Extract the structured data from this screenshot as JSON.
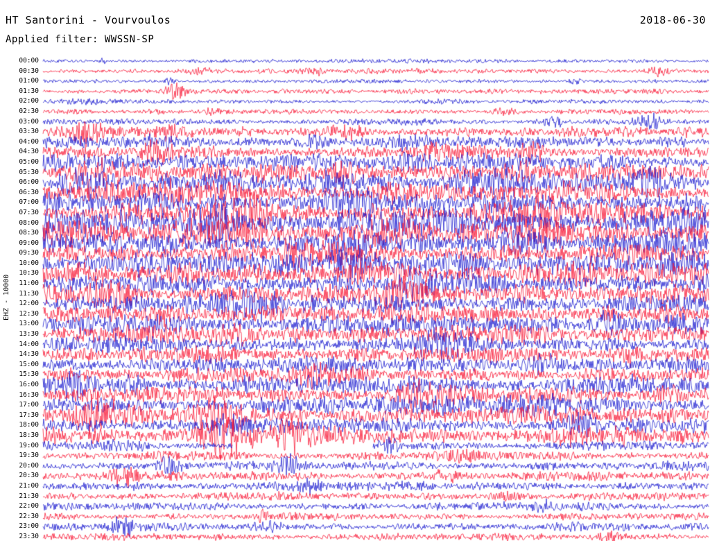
{
  "header": {
    "title": "HT Santorini - Vourvoulos",
    "date": "2018-06-30",
    "filter": "Applied filter: WWSSN-SP"
  },
  "axis": {
    "ylabel": "EHZ - 10000"
  },
  "chart_data": {
    "type": "line",
    "subtype": "helicorder-seismogram",
    "station": "HT Santorini - Vourvoulos",
    "channel": "EHZ",
    "scale": 10000,
    "date": "2018-06-30",
    "filter": "WWSSN-SP",
    "row_duration_minutes": 30,
    "colors": {
      "b": "#1414cd",
      "r": "#f81230"
    },
    "label_color": "#000000",
    "rows": [
      {
        "t": "00:00",
        "c": "b",
        "a": 4,
        "b": [
          [
            0.09,
            2.2,
            0.003
          ]
        ]
      },
      {
        "t": "00:30",
        "c": "r",
        "a": 5,
        "b": [
          [
            0.24,
            1.8,
            0.02
          ],
          [
            0.41,
            1.2,
            0.01
          ],
          [
            0.92,
            2.0,
            0.012
          ]
        ]
      },
      {
        "t": "01:00",
        "c": "b",
        "a": 4,
        "b": [
          [
            0.19,
            2.6,
            0.006
          ],
          [
            0.8,
            2.0,
            0.008
          ]
        ]
      },
      {
        "t": "01:30",
        "c": "r",
        "a": 5,
        "b": [
          [
            0.2,
            2.6,
            0.01
          ],
          [
            0.55,
            1.2,
            0.02
          ]
        ]
      },
      {
        "t": "02:00",
        "c": "b",
        "a": 4,
        "b": [
          [
            0.05,
            1.5,
            0.02
          ],
          [
            0.6,
            1.2,
            0.02
          ]
        ]
      },
      {
        "t": "02:30",
        "c": "r",
        "a": 5,
        "b": [
          [
            0.17,
            1.6,
            0.012
          ],
          [
            0.25,
            1.6,
            0.012
          ],
          [
            0.69,
            1.6,
            0.015
          ]
        ]
      },
      {
        "t": "03:00",
        "c": "b",
        "a": 6,
        "b": [
          [
            0.77,
            1.8,
            0.012
          ],
          [
            0.91,
            2.6,
            0.015
          ]
        ]
      },
      {
        "t": "03:30",
        "c": "r",
        "a": 10,
        "b": [
          [
            0.07,
            1.8,
            0.02
          ],
          [
            0.19,
            1.5,
            0.015
          ],
          [
            0.45,
            1.2,
            0.02
          ]
        ]
      },
      {
        "t": "04:00",
        "c": "b",
        "a": 11,
        "b": [
          [
            0.17,
            1.6,
            0.015
          ],
          [
            0.4,
            1.4,
            0.02
          ],
          [
            0.56,
            1.2,
            0.02
          ]
        ]
      },
      {
        "t": "04:30",
        "c": "r",
        "a": 12,
        "b": [
          [
            0.17,
            1.5,
            0.018
          ],
          [
            0.6,
            1.3,
            0.02
          ],
          [
            0.74,
            1.2,
            0.015
          ]
        ]
      },
      {
        "t": "05:00",
        "c": "b",
        "a": 16,
        "b": [
          [
            0.37,
            1.2,
            0.025
          ],
          [
            0.55,
            1.1,
            0.02
          ]
        ]
      },
      {
        "t": "05:30",
        "c": "r",
        "a": 18,
        "b": [
          [
            0.07,
            1.1,
            0.02
          ],
          [
            0.46,
            1.1,
            0.02
          ],
          [
            0.72,
            1.2,
            0.03
          ]
        ]
      },
      {
        "t": "06:00",
        "c": "b",
        "a": 20,
        "b": [
          [
            0.05,
            1.0,
            0.02
          ],
          [
            0.43,
            1.0,
            0.025
          ],
          [
            0.66,
            1.1,
            0.03
          ],
          [
            0.9,
            1.0,
            0.02
          ]
        ]
      },
      {
        "t": "06:30",
        "c": "r",
        "a": 19,
        "b": [
          [
            0.23,
            1.0,
            0.03
          ],
          [
            0.52,
            0.9,
            0.02
          ]
        ]
      },
      {
        "t": "07:00",
        "c": "b",
        "a": 20,
        "b": [
          [
            0.15,
            0.9,
            0.02
          ],
          [
            0.45,
            1.0,
            0.03
          ]
        ]
      },
      {
        "t": "07:30",
        "c": "r",
        "a": 21,
        "b": [
          [
            0.3,
            0.9,
            0.03
          ],
          [
            0.75,
            0.9,
            0.03
          ]
        ]
      },
      {
        "t": "08:00",
        "c": "b",
        "a": 26,
        "b": [
          [
            0.25,
            0.8,
            0.03
          ],
          [
            0.6,
            0.7,
            0.03
          ]
        ]
      },
      {
        "t": "08:30",
        "c": "r",
        "a": 26,
        "b": [
          [
            0.03,
            1.1,
            0.015
          ],
          [
            0.5,
            0.7,
            0.03
          ]
        ]
      },
      {
        "t": "09:00",
        "c": "b",
        "a": 22,
        "b": [
          [
            0.72,
            1.0,
            0.02
          ]
        ]
      },
      {
        "t": "09:30",
        "c": "r",
        "a": 19,
        "b": [
          [
            0.4,
            0.9,
            0.03
          ]
        ]
      },
      {
        "t": "10:00",
        "c": "b",
        "a": 23,
        "b": [
          [
            0.47,
            1.0,
            0.025
          ],
          [
            0.63,
            0.9,
            0.02
          ]
        ]
      },
      {
        "t": "10:30",
        "c": "r",
        "a": 21,
        "b": [
          [
            0.2,
            0.9,
            0.02
          ],
          [
            0.8,
            0.9,
            0.03
          ]
        ]
      },
      {
        "t": "11:00",
        "c": "b",
        "a": 20,
        "b": [
          [
            0.55,
            1.0,
            0.02
          ]
        ]
      },
      {
        "t": "11:30",
        "c": "r",
        "a": 21,
        "b": [
          [
            0.1,
            1.1,
            0.02
          ],
          [
            0.55,
            0.9,
            0.02
          ]
        ]
      },
      {
        "t": "12:00",
        "c": "b",
        "a": 19,
        "b": [
          [
            0.3,
            0.8,
            0.03
          ]
        ]
      },
      {
        "t": "12:30",
        "c": "r",
        "a": 18,
        "b": [
          [
            0.18,
            1.1,
            0.02
          ],
          [
            0.95,
            1.0,
            0.015
          ]
        ]
      },
      {
        "t": "13:00",
        "c": "b",
        "a": 20,
        "b": [
          [
            0.85,
            1.0,
            0.02
          ]
        ]
      },
      {
        "t": "13:30",
        "c": "r",
        "a": 18,
        "b": [
          [
            0.3,
            0.9,
            0.02
          ],
          [
            0.9,
            0.9,
            0.02
          ]
        ]
      },
      {
        "t": "14:00",
        "c": "b",
        "a": 16,
        "b": [
          [
            0.6,
            0.8,
            0.03
          ]
        ]
      },
      {
        "t": "14:30",
        "c": "r",
        "a": 16,
        "b": [
          [
            0.88,
            1.1,
            0.02
          ]
        ]
      },
      {
        "t": "15:00",
        "c": "b",
        "a": 16,
        "b": [
          [
            0.75,
            0.9,
            0.02
          ]
        ]
      },
      {
        "t": "15:30",
        "c": "r",
        "a": 15,
        "b": [
          [
            0.4,
            0.8,
            0.03
          ]
        ]
      },
      {
        "t": "16:00",
        "c": "b",
        "a": 18,
        "b": [
          [
            0.05,
            1.2,
            0.015
          ],
          [
            0.13,
            0.9,
            0.015
          ]
        ]
      },
      {
        "t": "16:30",
        "c": "r",
        "a": 16,
        "b": [
          [
            0.57,
            1.2,
            0.02
          ],
          [
            0.94,
            1.2,
            0.015
          ]
        ]
      },
      {
        "t": "17:00",
        "c": "b",
        "a": 18,
        "b": [
          [
            0.73,
            1.3,
            0.025
          ]
        ]
      },
      {
        "t": "17:30",
        "c": "r",
        "a": 18,
        "b": [
          [
            0.09,
            1.3,
            0.025
          ],
          [
            0.26,
            1.1,
            0.015
          ]
        ]
      },
      {
        "t": "18:00",
        "c": "b",
        "a": 15,
        "b": [
          [
            0.29,
            1.2,
            0.02
          ],
          [
            0.8,
            1.2,
            0.015
          ]
        ]
      },
      {
        "t": "18:30",
        "c": "r",
        "a": 18,
        "b": [
          [
            0.27,
            1.6,
            0.03
          ],
          [
            0.38,
            1.4,
            0.02
          ]
        ]
      },
      {
        "t": "19:00",
        "c": "b",
        "a": 9,
        "b": [
          [
            0.52,
            1.5,
            0.01
          ],
          [
            0.12,
            1.1,
            0.02
          ]
        ],
        "gaps": [
          [
            0.285,
            0.495
          ]
        ]
      },
      {
        "t": "19:30",
        "c": "r",
        "a": 9,
        "b": [
          [
            0.63,
            1.2,
            0.02
          ]
        ]
      },
      {
        "t": "20:00",
        "c": "b",
        "a": 9,
        "b": [
          [
            0.19,
            2.0,
            0.012
          ],
          [
            0.37,
            1.7,
            0.012
          ]
        ]
      },
      {
        "t": "20:30",
        "c": "r",
        "a": 9,
        "b": [
          [
            0.12,
            1.4,
            0.015
          ],
          [
            0.6,
            1.1,
            0.02
          ]
        ]
      },
      {
        "t": "21:00",
        "c": "b",
        "a": 9,
        "b": [
          [
            0.4,
            1.7,
            0.015
          ]
        ]
      },
      {
        "t": "21:30",
        "c": "r",
        "a": 8,
        "b": [
          [
            0.7,
            1.1,
            0.02
          ]
        ]
      },
      {
        "t": "22:00",
        "c": "b",
        "a": 8,
        "b": [
          [
            0.75,
            1.4,
            0.012
          ]
        ]
      },
      {
        "t": "22:30",
        "c": "r",
        "a": 7,
        "b": [
          [
            0.33,
            1.9,
            0.005
          ]
        ]
      },
      {
        "t": "23:00",
        "c": "b",
        "a": 8,
        "b": [
          [
            0.12,
            1.7,
            0.012
          ],
          [
            0.33,
            1.7,
            0.012
          ]
        ]
      },
      {
        "t": "23:30",
        "c": "r",
        "a": 7,
        "b": [
          [
            0.85,
            1.4,
            0.015
          ]
        ]
      }
    ]
  }
}
